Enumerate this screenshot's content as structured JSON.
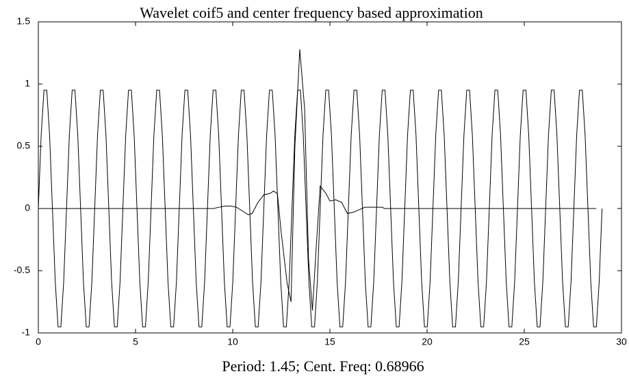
{
  "chart_data": {
    "type": "line",
    "title": "Wavelet coif5 and center frequency based approximation",
    "xlabel": "Period: 1.45; Cent. Freq: 0.68966",
    "xlim": [
      0,
      30
    ],
    "ylim": [
      -1,
      1.5
    ],
    "xticks": [
      0,
      5,
      10,
      15,
      20,
      25,
      30
    ],
    "yticks": [
      -1,
      -0.5,
      0,
      0.5,
      1,
      1.5
    ],
    "series": [
      {
        "color": "#000000",
        "x": [
          0,
          0.145,
          0.29,
          0.435,
          0.58,
          0.725,
          0.87,
          1.015,
          1.16,
          1.305,
          1.45,
          1.595,
          1.74,
          1.885,
          2.03,
          2.175,
          2.32,
          2.465,
          2.61,
          2.755,
          2.9,
          3.045,
          3.19,
          3.335,
          3.48,
          3.625,
          3.77,
          3.915,
          4.06,
          4.205,
          4.35,
          4.495,
          4.64,
          4.785,
          4.93,
          5.075,
          5.22,
          5.365,
          5.51,
          5.655,
          5.8,
          5.945,
          6.09,
          6.235,
          6.38,
          6.525,
          6.67,
          6.815,
          6.96,
          7.105,
          7.25,
          7.395,
          7.54,
          7.685,
          7.83,
          7.975,
          8.12,
          8.265,
          8.41,
          8.555,
          8.7,
          8.845,
          8.99,
          9.135,
          9.28,
          9.425,
          9.57,
          9.715,
          9.86,
          10.005,
          10.15,
          10.295,
          10.44,
          10.585,
          10.73,
          10.875,
          11.02,
          11.165,
          11.31,
          11.455,
          11.6,
          11.745,
          11.89,
          12.035,
          12.18,
          12.325,
          12.47,
          12.615,
          12.76,
          12.905,
          13.05,
          13.195,
          13.34,
          13.485,
          13.63,
          13.775,
          13.92,
          14.065,
          14.21,
          14.355,
          14.5,
          14.645,
          14.79,
          14.935,
          15.08,
          15.225,
          15.37,
          15.515,
          15.66,
          15.805,
          15.95,
          16.095,
          16.24,
          16.385,
          16.53,
          16.675,
          16.82,
          16.965,
          17.11,
          17.255,
          17.4,
          17.545,
          17.69,
          17.835,
          17.98,
          18.125,
          18.27,
          18.415,
          18.56,
          18.705,
          18.85,
          18.995,
          19.14,
          19.285,
          19.43,
          19.575,
          19.72,
          19.865,
          20.01,
          20.155,
          20.3,
          20.445,
          20.59,
          20.735,
          20.88,
          21.025,
          21.17,
          21.315,
          21.46,
          21.605,
          21.75,
          21.895,
          22.04,
          22.185,
          22.33,
          22.475,
          22.62,
          22.765,
          22.91,
          23.055,
          23.2,
          23.345,
          23.49,
          23.635,
          23.78,
          23.925,
          24.07,
          24.215,
          24.36,
          24.505,
          24.65,
          24.795,
          24.94,
          25.085,
          25.23,
          25.375,
          25.52,
          25.665,
          25.81,
          25.955,
          26.1,
          26.245,
          26.39,
          26.535,
          26.68,
          26.825,
          26.97,
          27.115,
          27.26,
          27.405,
          27.55,
          27.695,
          27.84,
          27.985,
          28.13,
          28.275,
          28.42,
          28.565,
          28.71,
          28.855,
          29
        ],
        "values": [
          0,
          0.588,
          0.951,
          0.951,
          0.588,
          0,
          -0.588,
          -0.951,
          -0.951,
          -0.588,
          0,
          0.588,
          0.951,
          0.951,
          0.588,
          0,
          -0.588,
          -0.951,
          -0.951,
          -0.588,
          0,
          0.588,
          0.951,
          0.951,
          0.588,
          0,
          -0.588,
          -0.951,
          -0.951,
          -0.588,
          0,
          0.588,
          0.951,
          0.951,
          0.588,
          0,
          -0.588,
          -0.951,
          -0.951,
          -0.588,
          0,
          0.588,
          0.951,
          0.951,
          0.588,
          0,
          -0.588,
          -0.951,
          -0.951,
          -0.588,
          0,
          0.588,
          0.951,
          0.951,
          0.588,
          0,
          -0.588,
          -0.951,
          -0.951,
          -0.588,
          0,
          0.588,
          0.951,
          0.951,
          0.588,
          0,
          -0.588,
          -0.951,
          -0.951,
          -0.588,
          0,
          0.588,
          0.951,
          0.951,
          0.588,
          0,
          -0.588,
          -0.951,
          -0.951,
          -0.588,
          0,
          0.588,
          0.951,
          0.951,
          0.588,
          0,
          -0.588,
          -0.951,
          -0.951,
          -0.588,
          0,
          0.588,
          0.951,
          0.951,
          0.588,
          0,
          -0.588,
          -0.951,
          -0.951,
          -0.588,
          0,
          0.588,
          0.951,
          0.951,
          0.588,
          0,
          -0.588,
          -0.951,
          -0.951,
          -0.588,
          0,
          0.588,
          0.951,
          0.951,
          0.588,
          0,
          -0.588,
          -0.951,
          -0.951,
          -0.588,
          0,
          0.588,
          0.951,
          0.951,
          0.588,
          0,
          -0.588,
          -0.951,
          -0.951,
          -0.588,
          0,
          0.588,
          0.951,
          0.951,
          0.588,
          0,
          -0.588,
          -0.951,
          -0.951,
          -0.588,
          0,
          0.588,
          0.951,
          0.951,
          0.588,
          0,
          -0.588,
          -0.951,
          -0.951,
          -0.588,
          0,
          0.588,
          0.951,
          0.951,
          0.588,
          0,
          -0.588,
          -0.951,
          -0.951,
          -0.588,
          0,
          0.588,
          0.951,
          0.951,
          0.588,
          0,
          -0.588,
          -0.951,
          -0.951,
          -0.588,
          0,
          0.588,
          0.951,
          0.951,
          0.588,
          0,
          -0.588,
          -0.951,
          -0.951,
          -0.588,
          0,
          0.588,
          0.951,
          0.951,
          0.588,
          0,
          -0.588,
          -0.951,
          -0.951,
          -0.588,
          0,
          0.588,
          0.951,
          0.951,
          0.588,
          0,
          -0.588,
          -0.951,
          -0.951,
          -0.588,
          0
        ]
      },
      {
        "color": "#000000",
        "x": [
          0,
          9.0,
          9.3,
          9.6,
          9.9,
          10.2,
          10.5,
          10.8,
          11.0,
          11.3,
          11.6,
          11.9,
          12.1,
          12.3,
          12.5,
          12.8,
          13.0,
          13.2,
          13.45,
          13.7,
          13.9,
          14.1,
          14.3,
          14.5,
          14.8,
          15.0,
          15.3,
          15.6,
          15.9,
          16.2,
          16.5,
          16.8,
          17.1,
          17.7,
          17.8,
          28.7
        ],
        "values": [
          0,
          0,
          0.01,
          0.02,
          0.02,
          0.01,
          -0.02,
          -0.05,
          -0.04,
          0.05,
          0.11,
          0.12,
          0.14,
          0.12,
          -0.2,
          -0.6,
          -0.75,
          0.5,
          1.28,
          0.8,
          -0.4,
          -0.82,
          -0.3,
          0.18,
          0.12,
          0.06,
          0.07,
          0.05,
          -0.04,
          -0.03,
          -0.01,
          0.01,
          0.01,
          0.01,
          0,
          0
        ]
      }
    ]
  }
}
